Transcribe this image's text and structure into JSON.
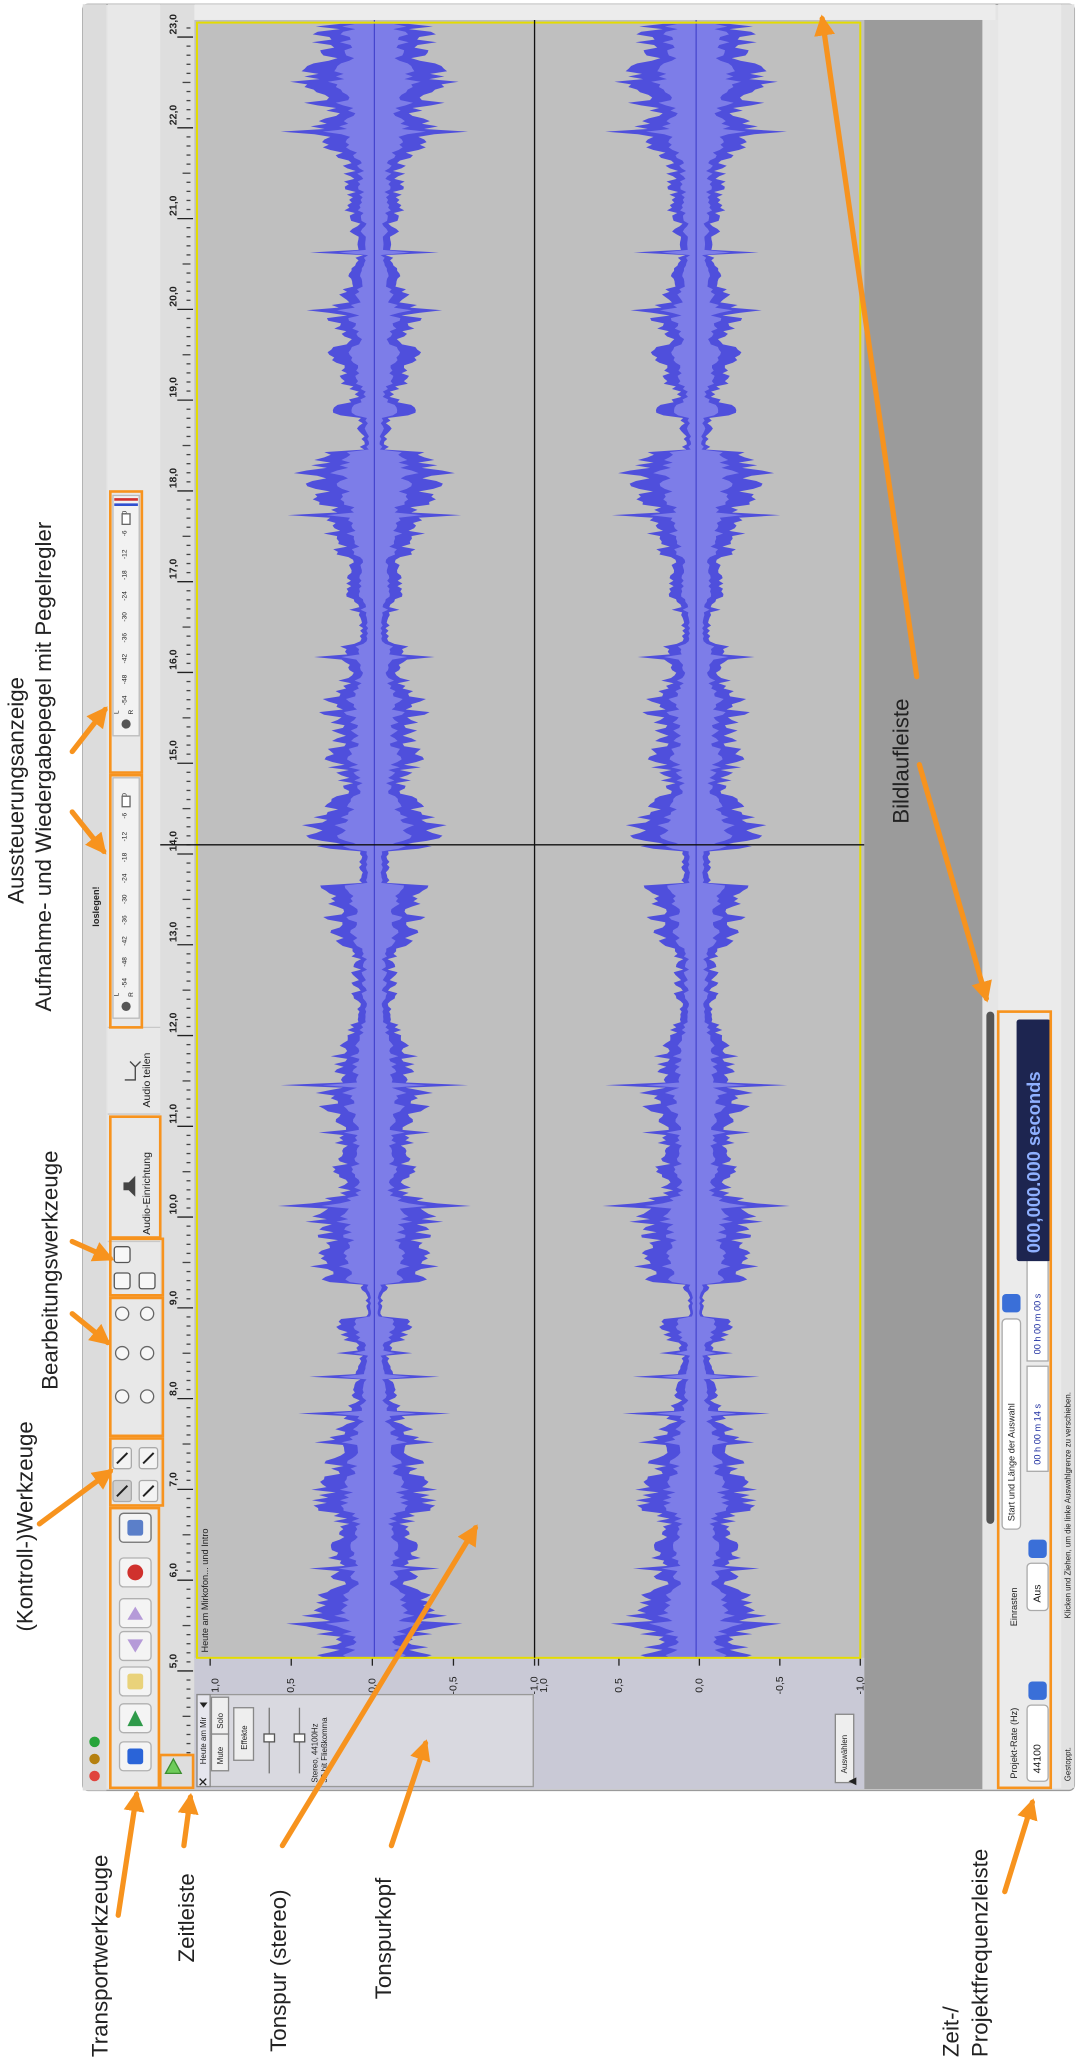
{
  "annotations": {
    "meters": [
      "Aussteuerungsanzeige",
      "Aufnahme- und Wiedergabepegel mit Pegelregler"
    ],
    "edit_tools": "Bearbeitungswerkzeuge",
    "control_tools": "(Kontroll-)Werkzeuge",
    "transport_tools": "Transportwerkzeuge",
    "timeline": "Zeitleiste",
    "track": "Tonspur (stereo)",
    "track_head": "Tonspurkopf",
    "scrollbar": "Bildlaufleiste",
    "selection_bar": [
      "Zeit-/",
      "Projektfrequenzleiste"
    ]
  },
  "toolbar": {
    "audio_setup": "Audio-Einrichtung",
    "split_audio": "Audio teilen",
    "meter_prompt": "loslegen!",
    "meter_channels": [
      "L",
      "R"
    ],
    "meter_scale": [
      "-54",
      "-48",
      "-42",
      "-36",
      "-30",
      "-24",
      "-18",
      "-12",
      "-6",
      "0"
    ]
  },
  "ruler": {
    "labels": [
      "5,0",
      "6,0",
      "7,0",
      "8,0",
      "9,0",
      "10,0",
      "11,0",
      "12,0",
      "13,0",
      "14,0",
      "15,0",
      "16,0",
      "17,0",
      "18,0",
      "19,0",
      "20,0",
      "21,0",
      "22,0",
      "23,0"
    ]
  },
  "track": {
    "name": "Heute am Mir",
    "mute": "Mute",
    "solo": "Solo",
    "effects": "Effekte",
    "format": [
      "Stereo, 44100Hz",
      "32-bit Fließkomma"
    ],
    "select": "Auswählen",
    "clip_title": "Heute am Mirkofon... und Intro",
    "scale": [
      "1,0",
      "0,5",
      "0,0",
      "-0,5",
      "-1,0"
    ]
  },
  "selection_toolbar": {
    "rate_label": "Projekt-Rate (Hz)",
    "rate": "44100",
    "snap_label": "Einrasten",
    "snap": "Aus",
    "selection_label": "Start und Länge der Auswahl",
    "start": "00 h 00 m 14 s",
    "length": "00 h 00 m 00 s",
    "position": "000,000.000 seconds"
  },
  "status_bar": {
    "state": "Gestoppt.",
    "hint": "Klicken und Ziehen, um die linke Auswahlgrenze zu verschieben."
  }
}
